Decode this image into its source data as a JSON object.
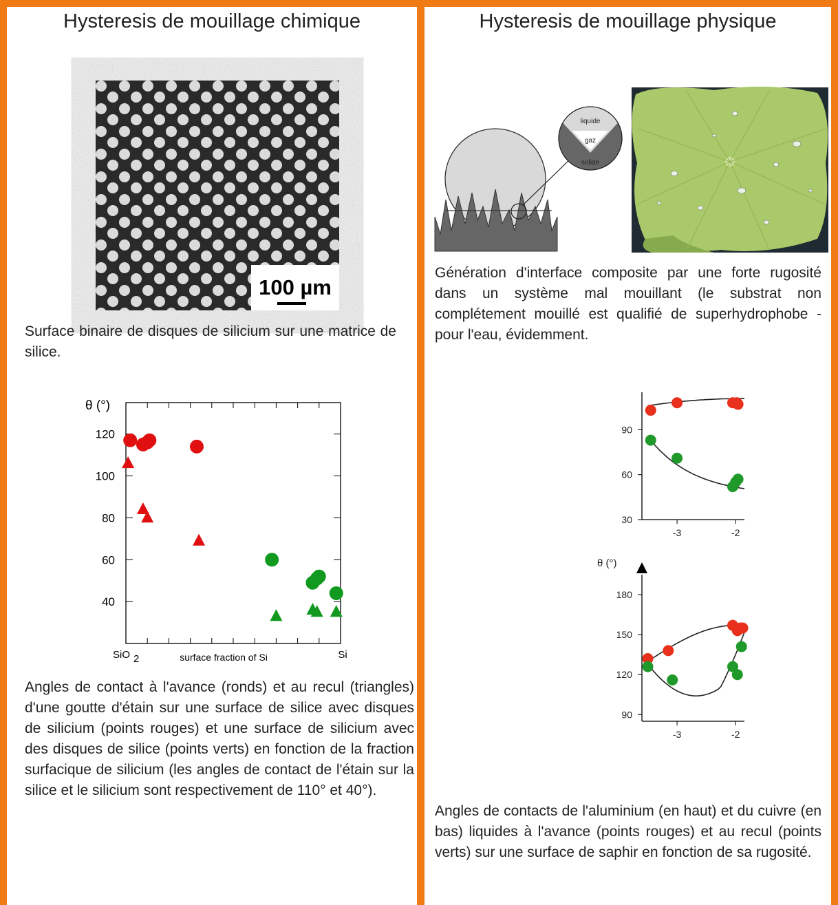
{
  "left": {
    "title": "Hysteresis de mouillage chimique",
    "micrograph": {
      "scale_label": "100 µm"
    },
    "caption_top": "Surface binaire de disques de silicium sur une matrice de silice.",
    "caption_bottom": "Angles de contact à l'avance (ronds) et au recul (triangles) d'une goutte d'étain sur une surface de silice avec disques de silicium (points rouges) et une surface de silicium avec des disques de silice (points verts) en fonction de la fraction surfacique de silicium (les angles de contact de l'étain sur la silice et le silicium sont respectivement de 110° et 40°)."
  },
  "right": {
    "title": "Hysteresis de mouillage physique",
    "schematic": {
      "label_liquid": "liquide",
      "label_gas": "gaz",
      "label_solid": "solide"
    },
    "caption_top": "Génération d'interface composite par une forte rugosité dans un système mal mouillant (le substrat non complétement mouillé est qualifié de  superhydrophobe - pour l'eau, évidemment.",
    "caption_bottom": "Angles de contacts de l'aluminium (en haut) et du cuivre (en bas) liquides à l'avance (points rouges) et au recul (points verts) sur une surface de saphir en fonction de sa rugosité."
  },
  "chart_data": [
    {
      "type": "scatter",
      "ylabel": "θ  (°)",
      "xlabel": "surface fraction of Si",
      "x_left_label": "SiO",
      "x_left_sub": "2",
      "x_right_label": "Si",
      "xlim": [
        0,
        1
      ],
      "ylim": [
        20,
        135
      ],
      "yticks": [
        40,
        60,
        80,
        100,
        120
      ],
      "series": [
        {
          "marker": "circle",
          "color": "#e01010",
          "points": [
            [
              0.02,
              117
            ],
            [
              0.08,
              115
            ],
            [
              0.1,
              116
            ],
            [
              0.11,
              117
            ],
            [
              0.33,
              114
            ]
          ]
        },
        {
          "marker": "triangle",
          "color": "#e01010",
          "points": [
            [
              0.01,
              106
            ],
            [
              0.08,
              84
            ],
            [
              0.1,
              80
            ],
            [
              0.34,
              69
            ]
          ]
        },
        {
          "marker": "circle",
          "color": "#119a1f",
          "points": [
            [
              0.68,
              60
            ],
            [
              0.87,
              49
            ],
            [
              0.89,
              51
            ],
            [
              0.9,
              52
            ],
            [
              0.98,
              44
            ]
          ]
        },
        {
          "marker": "triangle",
          "color": "#119a1f",
          "points": [
            [
              0.7,
              33
            ],
            [
              0.87,
              36
            ],
            [
              0.89,
              35
            ],
            [
              0.98,
              35
            ]
          ]
        }
      ]
    },
    {
      "type": "scatter",
      "xlim": [
        -3.6,
        -1.85
      ],
      "ylim": [
        30,
        115
      ],
      "yticks": [
        30,
        60,
        90
      ],
      "xticks": [
        -3,
        -2
      ],
      "series": [
        {
          "marker": "circle",
          "color": "#e8301c",
          "points": [
            [
              -3.45,
              103
            ],
            [
              -3.0,
              108
            ],
            [
              -2.05,
              108
            ],
            [
              -1.98,
              108
            ],
            [
              -1.96,
              107
            ]
          ]
        },
        {
          "marker": "circle",
          "color": "#1f9a2a",
          "points": [
            [
              -3.45,
              83
            ],
            [
              -3.0,
              71
            ],
            [
              -2.05,
              52
            ],
            [
              -2.0,
              55
            ],
            [
              -1.96,
              57
            ]
          ]
        }
      ]
    },
    {
      "type": "scatter",
      "ylabel": "θ (°)",
      "xlim": [
        -3.6,
        -1.85
      ],
      "ylim": [
        85,
        195
      ],
      "yticks": [
        90,
        120,
        150,
        180
      ],
      "xticks": [
        -3,
        -2
      ],
      "series": [
        {
          "marker": "circle",
          "color": "#e8301c",
          "points": [
            [
              -3.5,
              132
            ],
            [
              -3.15,
              138
            ],
            [
              -2.05,
              157
            ],
            [
              -1.97,
              153
            ],
            [
              -1.92,
              155
            ],
            [
              -1.88,
              155
            ]
          ]
        },
        {
          "marker": "circle",
          "color": "#1f9a2a",
          "points": [
            [
              -3.5,
              126
            ],
            [
              -3.08,
              116
            ],
            [
              -2.05,
              126
            ],
            [
              -1.97,
              120
            ],
            [
              -1.9,
              141
            ]
          ]
        }
      ]
    }
  ]
}
